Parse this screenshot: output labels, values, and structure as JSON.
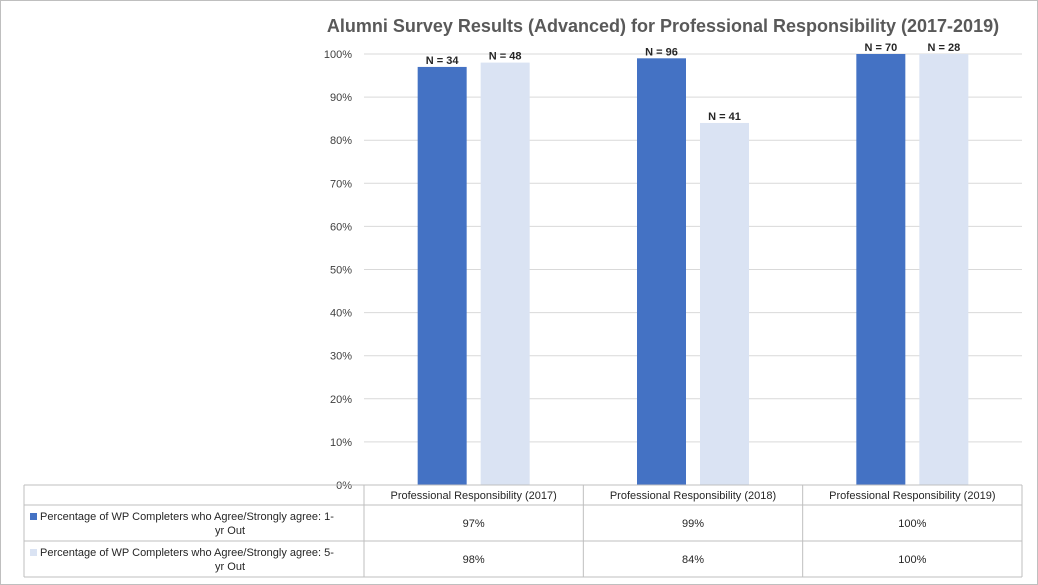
{
  "chart_data": {
    "type": "bar",
    "title": "Alumni Survey Results (Advanced) for Professional Responsibility (2017-2019)",
    "categories": [
      "Professional Responsibility  (2017)",
      "Professional Responsibility  (2018)",
      "Professional Responsibility  (2019)"
    ],
    "series": [
      {
        "name": "Percentage of WP Completers who Agree/Strongly agree: 1-yr Out",
        "legend_lines": [
          "Percentage of WP Completers who Agree/Strongly agree: 1-",
          "yr Out"
        ],
        "values": [
          97,
          99,
          100
        ],
        "table_values": [
          "97%",
          "99%",
          "100%"
        ],
        "n_labels": [
          "N = 34",
          "N = 96",
          "N = 70"
        ],
        "color": "#4472c4"
      },
      {
        "name": "Percentage of WP Completers who Agree/Strongly agree: 5-yr Out",
        "legend_lines": [
          "Percentage of WP Completers who Agree/Strongly agree: 5-",
          "yr Out"
        ],
        "values": [
          98,
          84,
          100
        ],
        "table_values": [
          "98%",
          "84%",
          "100%"
        ],
        "n_labels": [
          "N = 48",
          "N = 41",
          "N = 28"
        ],
        "color": "#dae3f3"
      }
    ],
    "ylim": [
      0,
      100
    ],
    "yticks": [
      "0%",
      "10%",
      "20%",
      "30%",
      "40%",
      "50%",
      "60%",
      "70%",
      "80%",
      "90%",
      "100%"
    ],
    "grid": true,
    "legend": "data-table",
    "gridline_color": "#d9d9d9"
  }
}
